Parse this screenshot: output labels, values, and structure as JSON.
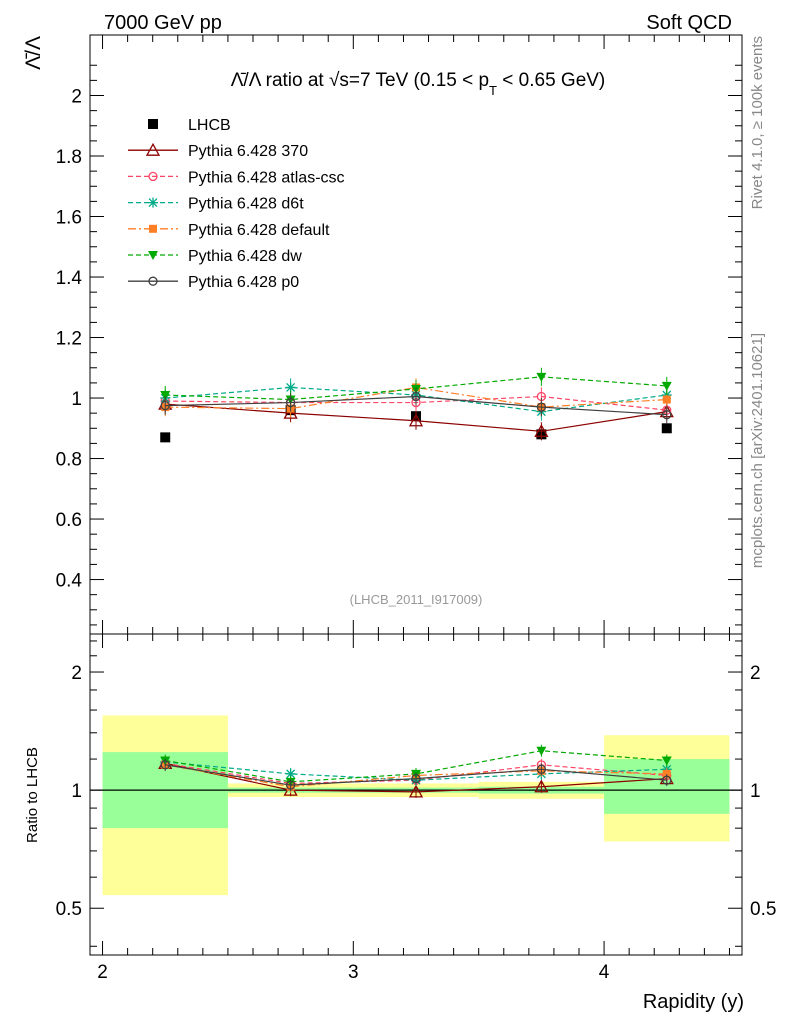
{
  "header": {
    "left": "7000 GeV pp",
    "right": "Soft QCD"
  },
  "side": {
    "rivet": "Rivet 4.1.0, ≥ 100k events",
    "mcplots": "mcplots.cern.ch [arXiv:2401.10621]"
  },
  "colors": {
    "data": "#000000",
    "p370": "#8b0000",
    "atlas": "#ff4466",
    "d6t": "#00aa88",
    "default": "#ff7f27",
    "dw": "#00aa00",
    "p0": "#404040",
    "band_green": "#99ff99",
    "band_yellow": "#ffff99"
  },
  "chart_data": [
    {
      "type": "line",
      "title": "Λ̄/Λ ratio at √s=7 TeV (0.15 < p_T < 0.65 GeV)",
      "title_parts": {
        "main": "Λ̄/Λ ratio at √s=7 TeV (0.15 < p",
        "sub": "T",
        "tail": " < 0.65 GeV)"
      },
      "ylabel": "Λ̄/Λ",
      "xlabel": "Rapidity (y)",
      "watermark": "(LHCB_2011_I917009)",
      "xlim": [
        1.95,
        4.55
      ],
      "ylim": [
        0.22,
        2.2
      ],
      "y_ticks": [
        0.4,
        0.6,
        0.8,
        1,
        1.2,
        1.4,
        1.6,
        1.8,
        2
      ],
      "y_tick_labels": [
        "0.4",
        "0.6",
        "0.8",
        "1",
        "1.2",
        "1.4",
        "1.6",
        "1.8",
        "2"
      ],
      "x": [
        2.25,
        2.75,
        3.25,
        3.75,
        4.25
      ],
      "series": [
        {
          "name": "LHCB",
          "key": "data",
          "marker": "square",
          "values": [
            0.87,
            0.96,
            0.94,
            0.88,
            0.9
          ],
          "errors": [
            0.0,
            0.0,
            0.0,
            0.0,
            0.0
          ]
        },
        {
          "name": "Pythia 6.428 370",
          "key": "p370",
          "marker": "triangle",
          "dash": "",
          "values": [
            0.98,
            0.95,
            0.925,
            0.89,
            0.955
          ],
          "errors": [
            0.03,
            0.03,
            0.03,
            0.03,
            0.03
          ]
        },
        {
          "name": "Pythia 6.428 atlas-csc",
          "key": "atlas",
          "marker": "circle-open",
          "dash": "5,3",
          "values": [
            0.99,
            0.985,
            0.985,
            1.005,
            0.96
          ],
          "errors": [
            0.03,
            0.03,
            0.03,
            0.03,
            0.03
          ]
        },
        {
          "name": "Pythia 6.428 d6t",
          "key": "d6t",
          "marker": "star",
          "dash": "5,3",
          "values": [
            1.0,
            1.035,
            1.01,
            0.955,
            1.01
          ],
          "errors": [
            0.03,
            0.03,
            0.03,
            0.03,
            0.03
          ]
        },
        {
          "name": "Pythia 6.428 default",
          "key": "default",
          "marker": "square-small",
          "dash": "8,3,2,3",
          "values": [
            0.97,
            0.965,
            1.035,
            0.97,
            0.995
          ],
          "errors": [
            0.03,
            0.03,
            0.03,
            0.03,
            0.03
          ]
        },
        {
          "name": "Pythia 6.428 dw",
          "key": "dw",
          "marker": "triangle-down",
          "dash": "5,3",
          "values": [
            1.01,
            0.995,
            1.03,
            1.07,
            1.04
          ],
          "errors": [
            0.03,
            0.03,
            0.03,
            0.03,
            0.03
          ]
        },
        {
          "name": "Pythia 6.428 p0",
          "key": "p0",
          "marker": "circle-open",
          "dash": "",
          "values": [
            0.975,
            0.985,
            1.005,
            0.97,
            0.945
          ],
          "errors": [
            0.03,
            0.03,
            0.03,
            0.03,
            0.03
          ]
        }
      ]
    },
    {
      "type": "line",
      "ylabel": "Ratio to LHCB",
      "yscale": "log",
      "xlim": [
        1.95,
        4.55
      ],
      "ylim": [
        0.38,
        2.5
      ],
      "y_major_ticks": [
        0.5,
        1,
        2
      ],
      "y_major_labels": [
        "0.5",
        "1",
        "2"
      ],
      "x_ticks": [
        2,
        3,
        4
      ],
      "x_tick_labels": [
        "2",
        "3",
        "4"
      ],
      "bins": [
        [
          2.0,
          2.5
        ],
        [
          2.5,
          3.0
        ],
        [
          3.0,
          3.5
        ],
        [
          3.5,
          4.0
        ],
        [
          4.0,
          4.5
        ]
      ],
      "band_green": [
        [
          0.8,
          1.25
        ],
        [
          0.985,
          1.015
        ],
        [
          0.985,
          1.015
        ],
        [
          0.98,
          1.02
        ],
        [
          0.87,
          1.2
        ]
      ],
      "band_yellow": [
        [
          0.54,
          1.55
        ],
        [
          0.96,
          1.04
        ],
        [
          0.96,
          1.04
        ],
        [
          0.95,
          1.05
        ],
        [
          0.74,
          1.38
        ]
      ],
      "x": [
        2.25,
        2.75,
        3.25,
        3.75,
        4.25
      ],
      "series": [
        {
          "name": "Pythia 6.428 370",
          "key": "p370",
          "values": [
            1.17,
            1.0,
            0.99,
            1.02,
            1.07
          ]
        },
        {
          "name": "Pythia 6.428 atlas-csc",
          "key": "atlas",
          "values": [
            1.17,
            1.04,
            1.06,
            1.16,
            1.09
          ]
        },
        {
          "name": "Pythia 6.428 d6t",
          "key": "d6t",
          "values": [
            1.18,
            1.1,
            1.06,
            1.1,
            1.13
          ]
        },
        {
          "name": "Pythia 6.428 default",
          "key": "default",
          "values": [
            1.16,
            1.02,
            1.09,
            1.12,
            1.1
          ]
        },
        {
          "name": "Pythia 6.428 dw",
          "key": "dw",
          "values": [
            1.19,
            1.05,
            1.1,
            1.26,
            1.19
          ]
        },
        {
          "name": "Pythia 6.428 p0",
          "key": "p0",
          "values": [
            1.16,
            1.03,
            1.07,
            1.13,
            1.06
          ]
        }
      ]
    }
  ]
}
